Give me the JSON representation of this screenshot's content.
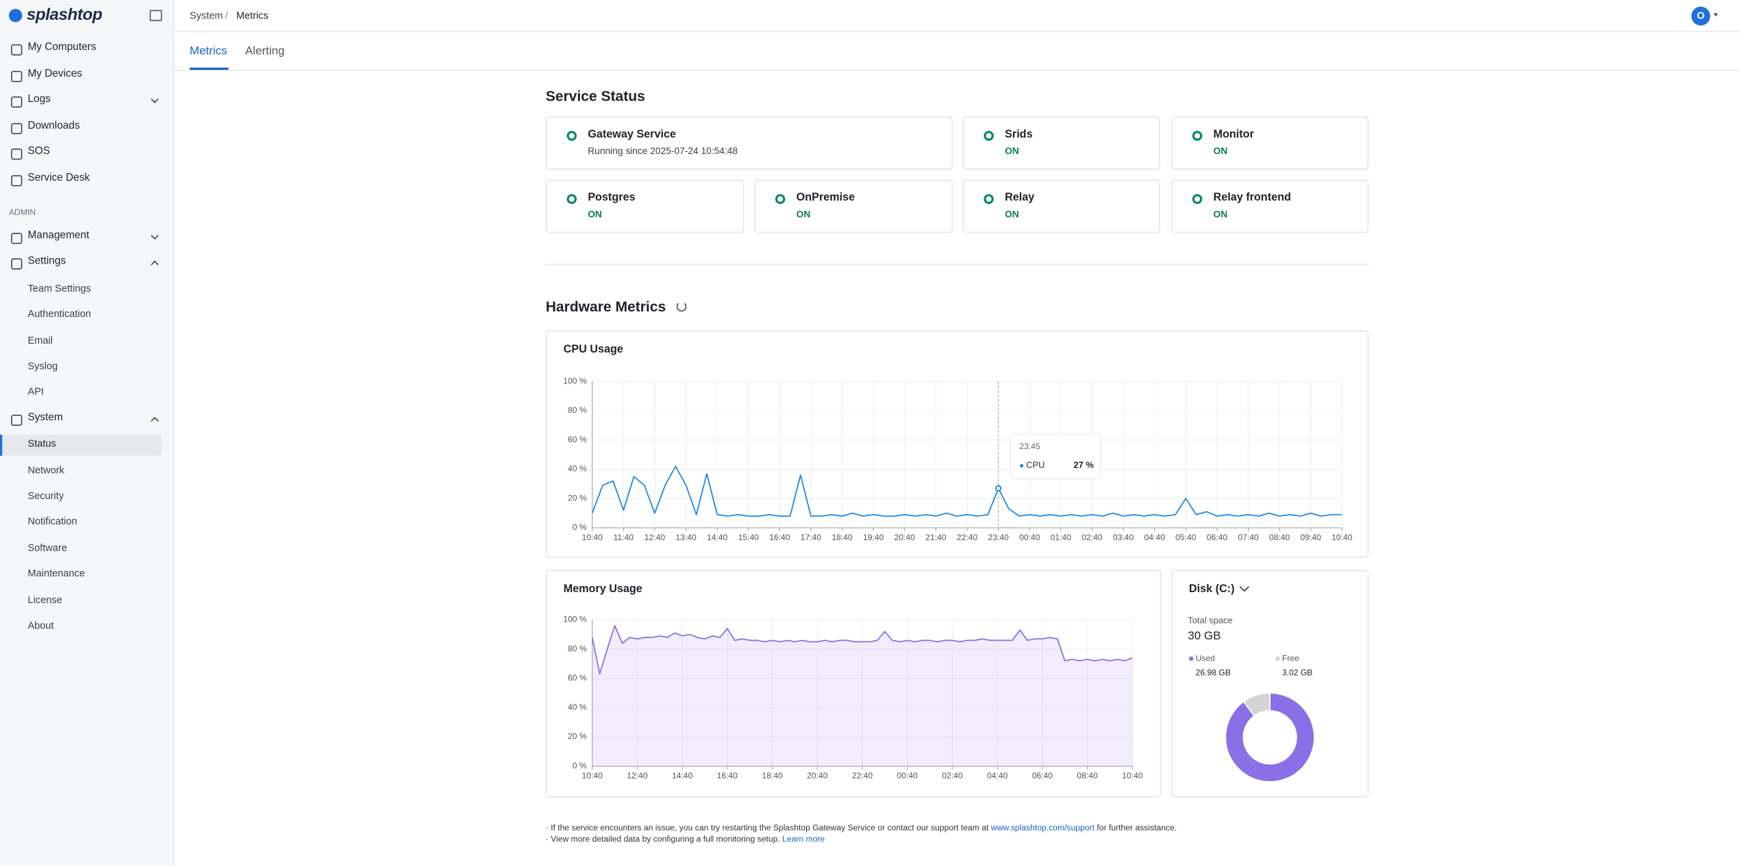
{
  "sidebar": {
    "logo": "splashtop",
    "main": [
      "My Computers",
      "My Devices",
      "Logs",
      "Downloads",
      "SOS",
      "Service Desk"
    ],
    "section": "ADMIN",
    "admin": [
      {
        "label": "Management",
        "children": []
      },
      {
        "label": "Settings",
        "children": [
          {
            "label": "Team Settings"
          },
          {
            "label": "Authentication"
          },
          {
            "label": "Email"
          },
          {
            "label": "Syslog"
          },
          {
            "label": "API"
          }
        ]
      },
      {
        "label": "System",
        "children": [
          {
            "label": "Status",
            "active": true
          },
          {
            "label": "Network"
          },
          {
            "label": "Security"
          },
          {
            "label": "Notification"
          },
          {
            "label": "Software"
          },
          {
            "label": "Maintenance"
          },
          {
            "label": "License"
          },
          {
            "label": "About"
          }
        ]
      }
    ]
  },
  "header": {
    "breadcrumb": [
      "System",
      "Metrics"
    ],
    "avatar": "O"
  },
  "tabs": [
    {
      "label": "Metrics",
      "active": true
    },
    {
      "label": "Alerting"
    }
  ],
  "service_status": {
    "title": "Service Status",
    "services": [
      {
        "name": "Gateway Service",
        "status": "Running since 2025-07-24 10:54:48"
      },
      {
        "name": "Srids",
        "status": "ON"
      },
      {
        "name": "Monitor",
        "status": "ON"
      },
      {
        "name": "Postgres",
        "status": "ON"
      },
      {
        "name": "OnPremise",
        "status": "ON"
      },
      {
        "name": "Relay",
        "status": "ON"
      },
      {
        "name": "Relay frontend",
        "status": "ON"
      }
    ]
  },
  "hardware_metrics": {
    "title": "Hardware Metrics"
  },
  "chart_data": [
    {
      "type": "line",
      "title": "CPU Usage",
      "color": "#1e88e5",
      "grid": true,
      "xticks": [
        "10:40",
        "11:40",
        "12:40",
        "13:40",
        "14:40",
        "15:40",
        "16:40",
        "17:40",
        "18:40",
        "19:40",
        "20:40",
        "21:40",
        "22:40",
        "23:40",
        "00:40",
        "01:40",
        "02:40",
        "03:40",
        "04:40",
        "05:40",
        "06:40",
        "07:40",
        "08:40",
        "09:40",
        "10:40"
      ],
      "ylim": [
        0,
        100
      ],
      "yticks": [
        {
          "value": 0,
          "label": "0 %"
        },
        {
          "value": 20,
          "label": "20 %"
        },
        {
          "value": 40,
          "label": "40 %"
        },
        {
          "value": 60,
          "label": "60 %"
        },
        {
          "value": 80,
          "label": "80 %"
        },
        {
          "value": 100,
          "label": "100 %"
        }
      ],
      "series": [
        {
          "name": "CPU",
          "values": [
            10,
            29,
            32,
            12,
            35,
            29,
            10,
            29,
            42,
            29,
            9,
            37,
            9,
            8,
            9,
            8,
            8,
            9,
            8,
            8,
            36,
            8,
            8,
            9,
            8,
            10,
            8,
            9,
            8,
            8,
            9,
            8,
            9,
            8,
            10,
            8,
            9,
            8,
            9,
            27,
            13,
            8,
            9,
            8,
            9,
            8,
            9,
            8,
            9,
            8,
            10,
            8,
            9,
            8,
            9,
            8,
            9,
            20,
            9,
            11,
            8,
            9,
            8,
            9,
            8,
            10,
            8,
            9,
            8,
            10,
            8,
            9,
            9
          ]
        }
      ],
      "tooltip": {
        "x": "23:45",
        "series": "CPU",
        "value_label": "27 %",
        "point": 39
      }
    },
    {
      "type": "area",
      "title": "Memory Usage",
      "color": "#8b6fe6",
      "grid": true,
      "xticks": [
        "10:40",
        "12:40",
        "14:40",
        "16:40",
        "18:40",
        "20:40",
        "22:40",
        "00:40",
        "02:40",
        "04:40",
        "06:40",
        "08:40",
        "10:40"
      ],
      "ylim": [
        0,
        100
      ],
      "yticks": [
        {
          "value": 0,
          "label": "0 %"
        },
        {
          "value": 20,
          "label": "20 %"
        },
        {
          "value": 40,
          "label": "40 %"
        },
        {
          "value": 60,
          "label": "60 %"
        },
        {
          "value": 80,
          "label": "80 %"
        },
        {
          "value": 100,
          "label": "100 %"
        }
      ],
      "series": [
        {
          "name": "Memory",
          "values": [
            88,
            63,
            80,
            96,
            84,
            88,
            87,
            88,
            88,
            89,
            88,
            91,
            89,
            90,
            88,
            87,
            89,
            88,
            94,
            86,
            87,
            86,
            86,
            85,
            86,
            85,
            86,
            85,
            86,
            85,
            85,
            86,
            85,
            86,
            86,
            85,
            85,
            85,
            86,
            92,
            86,
            85,
            86,
            85,
            86,
            86,
            85,
            86,
            86,
            85,
            86,
            86,
            87,
            86,
            86,
            86,
            86,
            93,
            86,
            87,
            87,
            88,
            87,
            72,
            73,
            72,
            73,
            72,
            73,
            72,
            73,
            72,
            74
          ]
        }
      ]
    },
    {
      "type": "pie",
      "title": "Disk (C:)",
      "total_label": "Total space",
      "total": "30 GB",
      "donut": true,
      "categories": [
        "Used",
        "Free"
      ],
      "values": [
        26.98,
        3.02
      ],
      "value_labels": [
        "26.98 GB",
        "3.02 GB"
      ],
      "colors": [
        "#8b6fe6",
        "#d4d4d4"
      ]
    }
  ],
  "footer": {
    "notes": [
      {
        "text": "If the service encounters an issue, you can try restarting the Splashtop Gateway Service or contact our support team at",
        "link": "www.splashtop.com/support",
        "after": "for further assistance."
      },
      {
        "text": "View more detailed data by configuring a full monitoring setup.",
        "link": "Learn more"
      }
    ]
  }
}
